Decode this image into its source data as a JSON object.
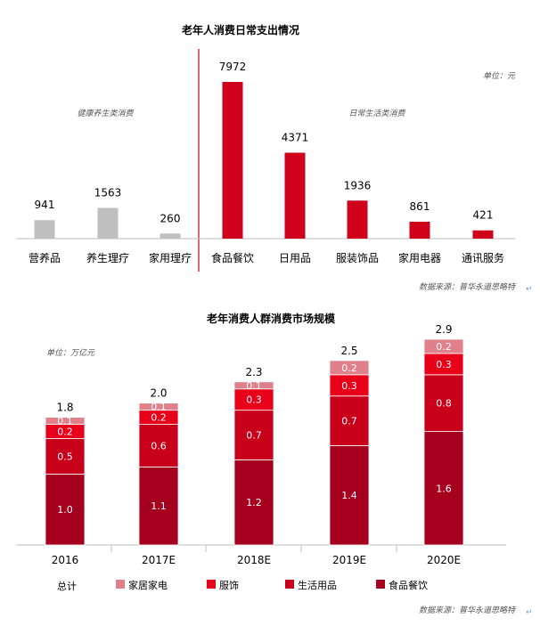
{
  "chart_data": [
    {
      "type": "bar",
      "title": "老年人消费日常支出情况",
      "unit_label": "单位：元",
      "group_labels": [
        "健康养生类消费",
        "日常生活类消费"
      ],
      "source": "数据来源：普华永道思略特",
      "categories": [
        "营养品",
        "养生理疗",
        "家用理疗",
        "食品餐饮",
        "日用品",
        "服装饰品",
        "家用电器",
        "通讯服务"
      ],
      "values": [
        941,
        1563,
        260,
        7972,
        4371,
        1936,
        861,
        421
      ],
      "groups": [
        "健康养生类消费",
        "健康养生类消费",
        "健康养生类消费",
        "日常生活类消费",
        "日常生活类消费",
        "日常生活类消费",
        "日常生活类消费",
        "日常生活类消费"
      ],
      "ylim": [
        0,
        9000
      ],
      "colors": {
        "group1": "#BFBFBF",
        "group2": "#D0021B",
        "divider": "#D0021B"
      }
    },
    {
      "type": "bar",
      "stacked": true,
      "title": "老年消费人群消费市场规模",
      "unit_label": "单位：万亿元",
      "source": "数据来源：普华永道思略特",
      "categories": [
        "2016",
        "2017E",
        "2018E",
        "2019E",
        "2020E"
      ],
      "totals": [
        "1.8",
        "2.0",
        "2.3",
        "2.5",
        "2.9"
      ],
      "totals_legend_label": "总计",
      "series": [
        {
          "name": "食品餐饮",
          "values": [
            1.0,
            1.1,
            1.2,
            1.4,
            1.6
          ],
          "color": "#A5001E"
        },
        {
          "name": "生活用品",
          "values": [
            0.5,
            0.6,
            0.7,
            0.7,
            0.8
          ],
          "color": "#C8001A"
        },
        {
          "name": "服饰",
          "values": [
            0.2,
            0.2,
            0.3,
            0.3,
            0.3
          ],
          "color": "#E8001A"
        },
        {
          "name": "家居家电",
          "values": [
            0.1,
            0.1,
            0.1,
            0.2,
            0.2
          ],
          "color": "#E0808A"
        }
      ],
      "ylim": [
        0,
        3.0
      ]
    }
  ]
}
